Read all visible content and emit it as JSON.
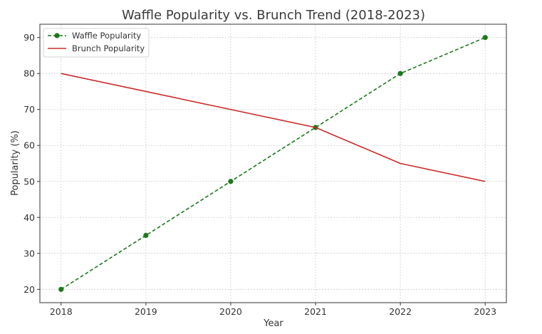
{
  "chart_data": {
    "type": "line",
    "title": "Waffle Popularity vs. Brunch Trend (2018-2023)",
    "xlabel": "Year",
    "ylabel": "Popularity (%)",
    "x": [
      2018,
      2019,
      2020,
      2021,
      2022,
      2023
    ],
    "xlim": [
      2017.75,
      2023.25
    ],
    "ylim": [
      16.3,
      93.7
    ],
    "yticks": [
      20,
      30,
      40,
      50,
      60,
      70,
      80,
      90
    ],
    "grid": true,
    "legend_position": "top-left",
    "series": [
      {
        "name": "Waffle Popularity",
        "values": [
          20,
          35,
          50,
          65,
          80,
          90
        ],
        "color": "#1a7a1a",
        "line_style": "dashed",
        "marker": "circle"
      },
      {
        "name": "Brunch Popularity",
        "values": [
          80,
          75,
          70,
          65,
          55,
          50
        ],
        "color": "#cc2a2a",
        "line_style": "solid",
        "marker": "none"
      }
    ]
  }
}
